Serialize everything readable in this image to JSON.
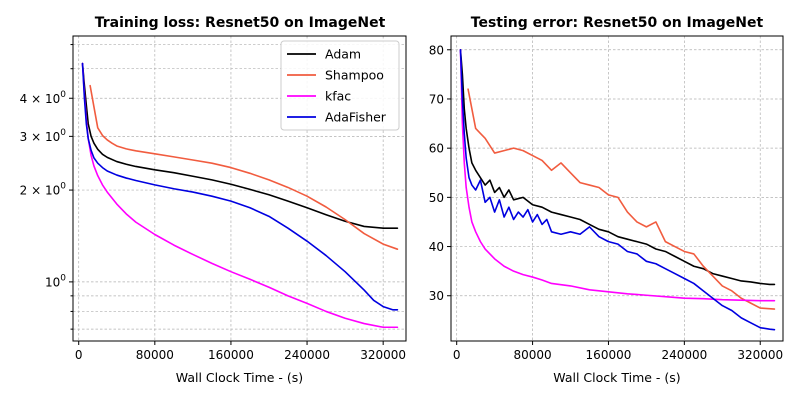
{
  "series_colors": {
    "Adam": "#000000",
    "Shampoo": "#f15c3f",
    "kfac": "#ff00ff",
    "AdaFisher": "#0000e0"
  },
  "chart_data": [
    {
      "type": "line",
      "title": "Training loss: Resnet50 on ImageNet",
      "xlabel": "Wall Clock Time - (s)",
      "ylabel": "",
      "yscale": "log",
      "xlim": [
        -6000,
        344000
      ],
      "ylim": [
        0.64,
        6.4
      ],
      "xticks": [
        {
          "value": 0,
          "label": "0"
        },
        {
          "value": 80000,
          "label": "80000"
        },
        {
          "value": 160000,
          "label": "160000"
        },
        {
          "value": 240000,
          "label": "240000"
        },
        {
          "value": 320000,
          "label": "320000"
        }
      ],
      "yticks_major": [
        {
          "value": 1,
          "base": "10",
          "exp": "0",
          "coef": ""
        },
        {
          "value": 2,
          "base": "10",
          "exp": "0",
          "coef": "2 × "
        },
        {
          "value": 3,
          "base": "10",
          "exp": "0",
          "coef": "3 × "
        },
        {
          "value": 4,
          "base": "10",
          "exp": "0",
          "coef": "4 × "
        }
      ],
      "yticks_minor": [
        0.7,
        0.8,
        0.9,
        5,
        6
      ],
      "grid": true,
      "legend": {
        "position": "top-right",
        "entries": [
          "Adam",
          "Shampoo",
          "kfac",
          "AdaFisher"
        ]
      },
      "series": [
        {
          "name": "Adam",
          "x": [
            4000,
            6000,
            8000,
            10000,
            13000,
            16000,
            20000,
            25000,
            30000,
            40000,
            50000,
            60000,
            80000,
            100000,
            120000,
            140000,
            160000,
            180000,
            200000,
            220000,
            240000,
            260000,
            280000,
            300000,
            320000,
            335000
          ],
          "y": [
            5.2,
            4.4,
            3.8,
            3.3,
            3.0,
            2.85,
            2.72,
            2.62,
            2.56,
            2.48,
            2.43,
            2.39,
            2.33,
            2.28,
            2.22,
            2.16,
            2.09,
            2.01,
            1.93,
            1.84,
            1.75,
            1.66,
            1.58,
            1.52,
            1.5,
            1.5
          ]
        },
        {
          "name": "Shampoo",
          "x": [
            12000,
            16000,
            20000,
            25000,
            30000,
            35000,
            40000,
            50000,
            60000,
            80000,
            100000,
            120000,
            140000,
            160000,
            180000,
            200000,
            220000,
            240000,
            260000,
            280000,
            300000,
            320000,
            335000
          ],
          "y": [
            4.4,
            3.75,
            3.2,
            3.02,
            2.92,
            2.85,
            2.79,
            2.73,
            2.69,
            2.63,
            2.57,
            2.51,
            2.45,
            2.37,
            2.27,
            2.16,
            2.04,
            1.91,
            1.76,
            1.6,
            1.44,
            1.33,
            1.28
          ]
        },
        {
          "name": "kfac",
          "x": [
            4000,
            6000,
            8000,
            10000,
            13000,
            16000,
            20000,
            25000,
            30000,
            40000,
            50000,
            60000,
            80000,
            100000,
            120000,
            140000,
            160000,
            180000,
            200000,
            220000,
            240000,
            260000,
            280000,
            300000,
            320000,
            335000
          ],
          "y": [
            5.2,
            4.1,
            3.4,
            2.95,
            2.6,
            2.4,
            2.23,
            2.08,
            1.97,
            1.8,
            1.67,
            1.57,
            1.43,
            1.32,
            1.23,
            1.15,
            1.08,
            1.02,
            0.96,
            0.9,
            0.85,
            0.8,
            0.76,
            0.73,
            0.71,
            0.71
          ]
        },
        {
          "name": "AdaFisher",
          "x": [
            4000,
            6000,
            8000,
            10000,
            13000,
            16000,
            20000,
            25000,
            30000,
            40000,
            50000,
            60000,
            80000,
            100000,
            120000,
            140000,
            160000,
            180000,
            200000,
            220000,
            240000,
            260000,
            280000,
            300000,
            310000,
            320000,
            330000,
            335000
          ],
          "y": [
            5.2,
            4.0,
            3.3,
            2.95,
            2.7,
            2.55,
            2.45,
            2.37,
            2.31,
            2.24,
            2.19,
            2.15,
            2.08,
            2.02,
            1.97,
            1.91,
            1.84,
            1.75,
            1.64,
            1.5,
            1.36,
            1.22,
            1.08,
            0.94,
            0.87,
            0.83,
            0.81,
            0.81
          ]
        }
      ]
    },
    {
      "type": "line",
      "title": "Testing error: Resnet50 on ImageNet",
      "xlabel": "Wall Clock Time - (s)",
      "ylabel": "",
      "yscale": "linear",
      "xlim": [
        -6000,
        344000
      ],
      "ylim": [
        20.8,
        82.8
      ],
      "xticks": [
        {
          "value": 0,
          "label": "0"
        },
        {
          "value": 80000,
          "label": "80000"
        },
        {
          "value": 160000,
          "label": "160000"
        },
        {
          "value": 240000,
          "label": "240000"
        },
        {
          "value": 320000,
          "label": "320000"
        }
      ],
      "yticks": [
        30,
        40,
        50,
        60,
        70,
        80
      ],
      "grid": true,
      "series": [
        {
          "name": "Adam",
          "x": [
            4000,
            6000,
            8000,
            10000,
            13000,
            16000,
            20000,
            25000,
            30000,
            35000,
            40000,
            45000,
            50000,
            55000,
            60000,
            70000,
            80000,
            90000,
            100000,
            110000,
            120000,
            130000,
            140000,
            150000,
            160000,
            170000,
            180000,
            190000,
            200000,
            210000,
            220000,
            230000,
            240000,
            250000,
            260000,
            270000,
            280000,
            290000,
            300000,
            310000,
            320000,
            330000,
            335000
          ],
          "y": [
            80,
            75,
            68,
            64,
            60,
            57,
            55.5,
            54,
            52.5,
            53.5,
            51,
            52,
            50,
            51.5,
            49.5,
            50,
            48.5,
            48,
            47,
            46.5,
            46,
            45.5,
            44.5,
            43.5,
            43,
            42,
            41.5,
            41,
            40.5,
            39.5,
            39,
            38,
            37,
            36,
            35.5,
            34.5,
            34,
            33.5,
            33,
            32.8,
            32.5,
            32.3,
            32.3
          ]
        },
        {
          "name": "Shampoo",
          "x": [
            12000,
            16000,
            20000,
            25000,
            30000,
            40000,
            50000,
            60000,
            70000,
            80000,
            90000,
            100000,
            110000,
            120000,
            130000,
            140000,
            150000,
            160000,
            170000,
            180000,
            190000,
            200000,
            210000,
            220000,
            230000,
            240000,
            250000,
            260000,
            270000,
            280000,
            290000,
            300000,
            310000,
            320000,
            335000
          ],
          "y": [
            72,
            68,
            64,
            63,
            62,
            59,
            59.5,
            60,
            59.5,
            58.5,
            57.5,
            55.5,
            57,
            55,
            53,
            52.5,
            52,
            50.5,
            50,
            47,
            45,
            44,
            45,
            41,
            40,
            39,
            38.5,
            36,
            34,
            32,
            31,
            29.5,
            28.5,
            27.5,
            27.3
          ]
        },
        {
          "name": "kfac",
          "x": [
            4000,
            6000,
            8000,
            10000,
            13000,
            16000,
            20000,
            25000,
            30000,
            35000,
            40000,
            50000,
            60000,
            70000,
            80000,
            90000,
            100000,
            120000,
            140000,
            160000,
            180000,
            200000,
            220000,
            240000,
            260000,
            280000,
            300000,
            320000,
            335000
          ],
          "y": [
            80,
            65,
            57,
            52,
            48,
            45,
            43,
            41,
            39.5,
            38.5,
            37.5,
            36,
            35,
            34.3,
            33.8,
            33.2,
            32.5,
            32,
            31.2,
            30.8,
            30.4,
            30.1,
            29.8,
            29.5,
            29.4,
            29.2,
            29.1,
            29.0,
            29.0
          ]
        },
        {
          "name": "AdaFisher",
          "x": [
            4000,
            6000,
            8000,
            10000,
            13000,
            16000,
            20000,
            25000,
            30000,
            35000,
            40000,
            45000,
            50000,
            55000,
            60000,
            65000,
            70000,
            75000,
            80000,
            85000,
            90000,
            95000,
            100000,
            110000,
            120000,
            130000,
            140000,
            150000,
            160000,
            170000,
            180000,
            190000,
            200000,
            210000,
            220000,
            230000,
            240000,
            250000,
            260000,
            270000,
            280000,
            290000,
            300000,
            310000,
            320000,
            330000,
            335000
          ],
          "y": [
            80,
            70,
            63,
            58,
            54,
            52.5,
            51.5,
            53.5,
            49,
            50,
            47,
            49.5,
            46,
            48,
            45.5,
            47,
            46,
            47.5,
            45,
            46.5,
            44.5,
            45.5,
            43,
            42.5,
            43,
            42.5,
            44,
            42,
            41,
            40.5,
            39,
            38.5,
            37,
            36.5,
            35.5,
            34.5,
            33.5,
            32.5,
            31,
            29.5,
            28,
            27,
            25.5,
            24.5,
            23.5,
            23.2,
            23.1
          ]
        }
      ]
    }
  ]
}
